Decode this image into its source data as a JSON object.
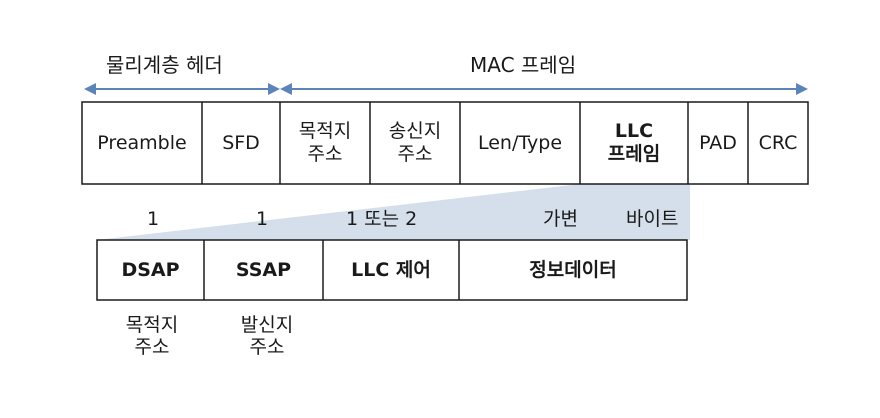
{
  "header": {
    "physical_header_label": "물리계층 헤더",
    "mac_frame_label": "MAC 프레임"
  },
  "mac_frame_fields": [
    {
      "line1": "Preamble",
      "line2": ""
    },
    {
      "line1": "SFD",
      "line2": ""
    },
    {
      "line1": "목적지",
      "line2": "주소"
    },
    {
      "line1": "송신지",
      "line2": "주소"
    },
    {
      "line1": "Len/Type",
      "line2": ""
    },
    {
      "line1": "LLC",
      "line2": "프레임"
    },
    {
      "line1": "PAD",
      "line2": ""
    },
    {
      "line1": "CRC",
      "line2": ""
    }
  ],
  "llc_sizes": {
    "dsap": "1",
    "ssap": "1",
    "control": "1 또는 2",
    "info": "가변",
    "unit": "바이트"
  },
  "llc_fields": {
    "dsap": "DSAP",
    "ssap": "SSAP",
    "control": "LLC 제어",
    "info": "정보데이터"
  },
  "llc_descriptions": {
    "dsap_line1": "목적지",
    "dsap_line2": "주소",
    "ssap_line1": "발신지",
    "ssap_line2": "주소"
  },
  "colors": {
    "arrow": "#5b84b8",
    "zoom_fill": "#d5deeb",
    "border": "#1a1a1a"
  }
}
